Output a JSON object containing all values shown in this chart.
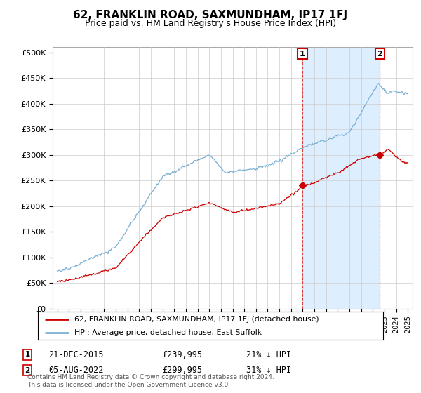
{
  "title": "62, FRANKLIN ROAD, SAXMUNDHAM, IP17 1FJ",
  "subtitle": "Price paid vs. HM Land Registry's House Price Index (HPI)",
  "yticks": [
    0,
    50000,
    100000,
    150000,
    200000,
    250000,
    300000,
    350000,
    400000,
    450000,
    500000
  ],
  "ytick_labels": [
    "£0",
    "£50K",
    "£100K",
    "£150K",
    "£200K",
    "£250K",
    "£300K",
    "£350K",
    "£400K",
    "£450K",
    "£500K"
  ],
  "hpi_color": "#7aafd4",
  "price_color": "#cc0000",
  "vline_color": "#dd4444",
  "fill_color": "#ddeeff",
  "grid_color": "#cccccc",
  "background_color": "#ffffff",
  "annotation_box_color": "#cc0000",
  "sale1_date": "21-DEC-2015",
  "sale1_price": 239995,
  "sale1_hpi_pct": "21% ↓ HPI",
  "sale2_date": "05-AUG-2022",
  "sale2_price": 299995,
  "sale2_hpi_pct": "31% ↓ HPI",
  "legend_line1": "62, FRANKLIN ROAD, SAXMUNDHAM, IP17 1FJ (detached house)",
  "legend_line2": "HPI: Average price, detached house, East Suffolk",
  "footer": "Contains HM Land Registry data © Crown copyright and database right 2024.\nThis data is licensed under the Open Government Licence v3.0.",
  "sale1_x": 2015.97,
  "sale2_x": 2022.59,
  "xlim_left": 1994.6,
  "xlim_right": 2025.4,
  "ylim_top": 510000
}
